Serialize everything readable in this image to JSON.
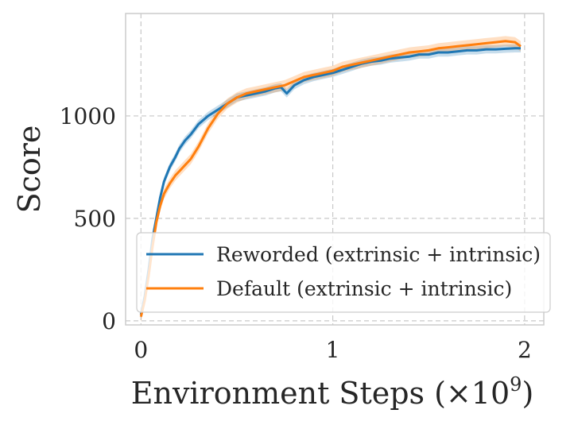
{
  "chart_data": {
    "type": "line",
    "title": "",
    "xlabel": "Environment Steps (×10",
    "xlabel_exponent": "9",
    "xlabel_close": ")",
    "ylabel": "Score",
    "xlim": [
      -0.08,
      2.1
    ],
    "ylim": [
      -20,
      1500
    ],
    "xticks": [
      0,
      1,
      2
    ],
    "xtick_labels": [
      "0",
      "1",
      "2"
    ],
    "yticks": [
      0,
      500,
      1000
    ],
    "ytick_labels": [
      "0",
      "500",
      "1000"
    ],
    "grid": true,
    "legend_position": "lower-right",
    "series": [
      {
        "name": "Reworded (extrinsic + intrinsic)",
        "color": "#1f77b4",
        "x": [
          0.0,
          0.02,
          0.04,
          0.06,
          0.08,
          0.1,
          0.12,
          0.15,
          0.18,
          0.2,
          0.23,
          0.26,
          0.3,
          0.35,
          0.4,
          0.45,
          0.5,
          0.55,
          0.6,
          0.65,
          0.7,
          0.73,
          0.76,
          0.8,
          0.85,
          0.9,
          0.95,
          1.0,
          1.05,
          1.1,
          1.15,
          1.2,
          1.25,
          1.3,
          1.35,
          1.4,
          1.45,
          1.5,
          1.55,
          1.6,
          1.65,
          1.7,
          1.75,
          1.8,
          1.85,
          1.9,
          1.95,
          1.98
        ],
        "values": [
          30,
          120,
          250,
          400,
          500,
          600,
          680,
          750,
          800,
          840,
          880,
          910,
          960,
          1000,
          1030,
          1060,
          1090,
          1100,
          1110,
          1120,
          1135,
          1140,
          1110,
          1150,
          1175,
          1190,
          1200,
          1210,
          1225,
          1240,
          1255,
          1265,
          1270,
          1280,
          1285,
          1290,
          1300,
          1300,
          1310,
          1310,
          1315,
          1320,
          1320,
          1325,
          1325,
          1328,
          1330,
          1330
        ],
        "band": 20
      },
      {
        "name": "Default (extrinsic + intrinsic)",
        "color": "#ff7f0e",
        "x": [
          0.0,
          0.02,
          0.04,
          0.06,
          0.08,
          0.1,
          0.12,
          0.15,
          0.18,
          0.2,
          0.23,
          0.26,
          0.3,
          0.35,
          0.4,
          0.45,
          0.5,
          0.55,
          0.6,
          0.65,
          0.7,
          0.75,
          0.8,
          0.85,
          0.9,
          0.95,
          1.0,
          1.05,
          1.1,
          1.15,
          1.2,
          1.25,
          1.3,
          1.35,
          1.4,
          1.45,
          1.5,
          1.55,
          1.6,
          1.65,
          1.7,
          1.75,
          1.8,
          1.85,
          1.9,
          1.95,
          1.98
        ],
        "values": [
          20,
          100,
          220,
          360,
          480,
          560,
          620,
          670,
          710,
          730,
          760,
          790,
          850,
          940,
          1010,
          1060,
          1090,
          1110,
          1120,
          1130,
          1140,
          1150,
          1170,
          1190,
          1200,
          1210,
          1220,
          1240,
          1250,
          1260,
          1270,
          1280,
          1290,
          1300,
          1310,
          1315,
          1320,
          1330,
          1335,
          1340,
          1345,
          1350,
          1355,
          1360,
          1365,
          1360,
          1340
        ],
        "band": 25
      }
    ]
  }
}
